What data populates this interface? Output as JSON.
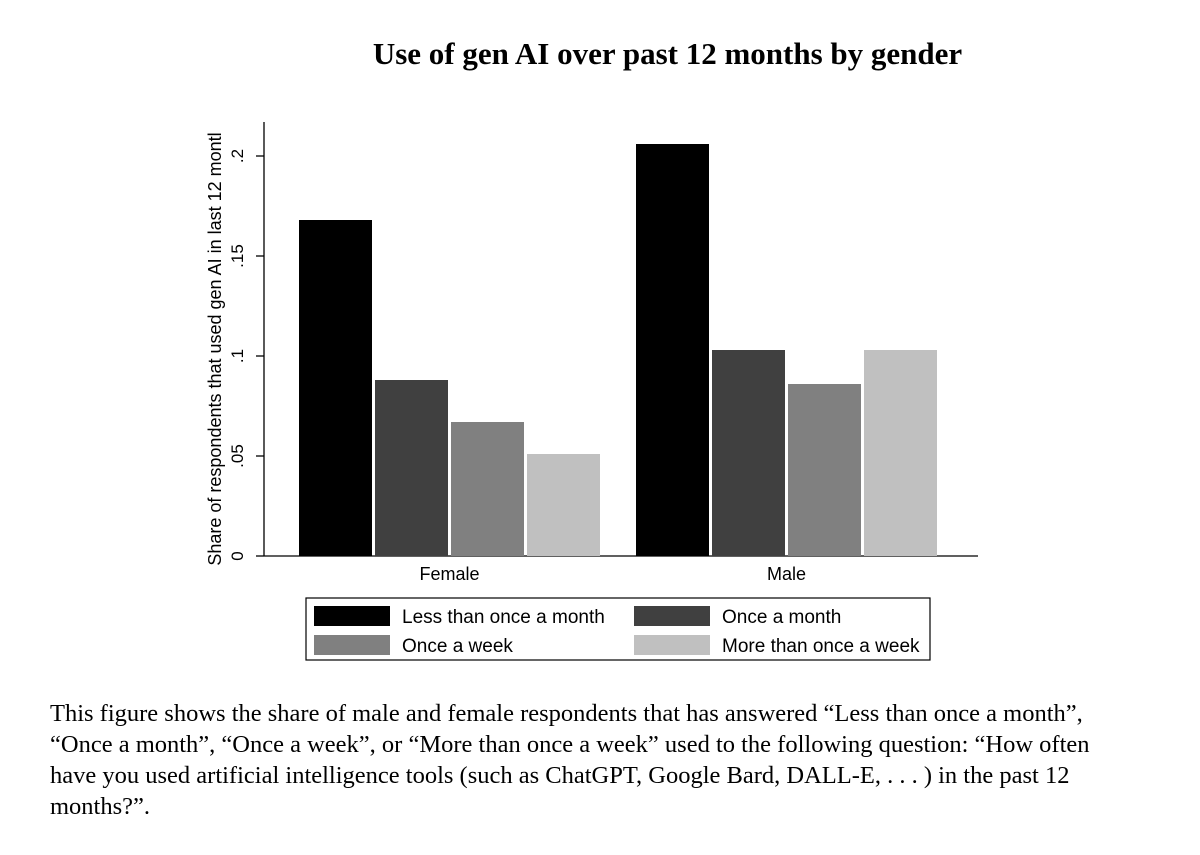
{
  "chart_data": {
    "type": "bar",
    "title": "Use of gen AI over past 12 months by gender",
    "ylabel": "Share of respondents that used gen AI in last 12 montl",
    "xlabel": "",
    "ylim": [
      0,
      0.2
    ],
    "yticks": [
      {
        "value": 0,
        "label": "0"
      },
      {
        "value": 0.05,
        "label": ".05"
      },
      {
        "value": 0.1,
        "label": ".1"
      },
      {
        "value": 0.15,
        "label": ".15"
      },
      {
        "value": 0.2,
        "label": ".2"
      }
    ],
    "categories": [
      "Female",
      "Male"
    ],
    "series": [
      {
        "name": "Less than once a month",
        "color": "#000000",
        "values": [
          0.168,
          0.206
        ]
      },
      {
        "name": "Once a month",
        "color": "#404040",
        "values": [
          0.088,
          0.103
        ]
      },
      {
        "name": "Once a week",
        "color": "#808080",
        "values": [
          0.067,
          0.086
        ]
      },
      {
        "name": "More than once a week",
        "color": "#c0c0c0",
        "values": [
          0.051,
          0.103
        ]
      }
    ],
    "grid": false,
    "legend_position": "bottom"
  },
  "caption": "This figure shows the share of male and female respondents that has answered “Less than once a month”, “Once a month”, “Once a week”, or “More than once a week” used to the following question: “How often have you used artificial intelligence tools (such as ChatGPT, Google Bard, DALL-E, . . . ) in the past 12 months?”."
}
